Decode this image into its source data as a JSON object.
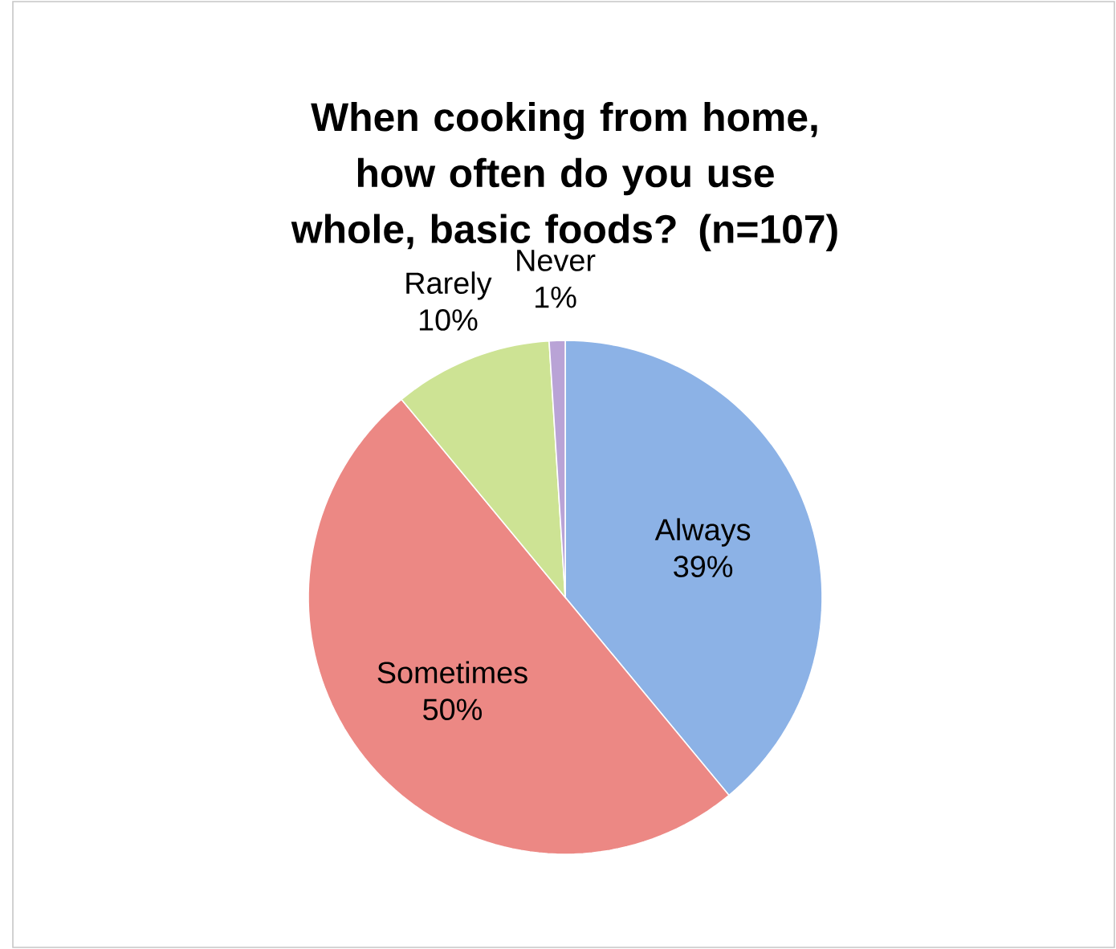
{
  "chart_data": {
    "type": "pie",
    "title": "When cooking from home, how often do you use whole, basic foods? (n=107)",
    "categories": [
      "Always",
      "Sometimes",
      "Rarely",
      "Never"
    ],
    "values": [
      39,
      50,
      10,
      1
    ],
    "value_labels": [
      "39%",
      "50%",
      "10%",
      "1%"
    ],
    "colors": [
      "#8cb2e6",
      "#ec8884",
      "#cde394",
      "#b9a3d6"
    ]
  }
}
